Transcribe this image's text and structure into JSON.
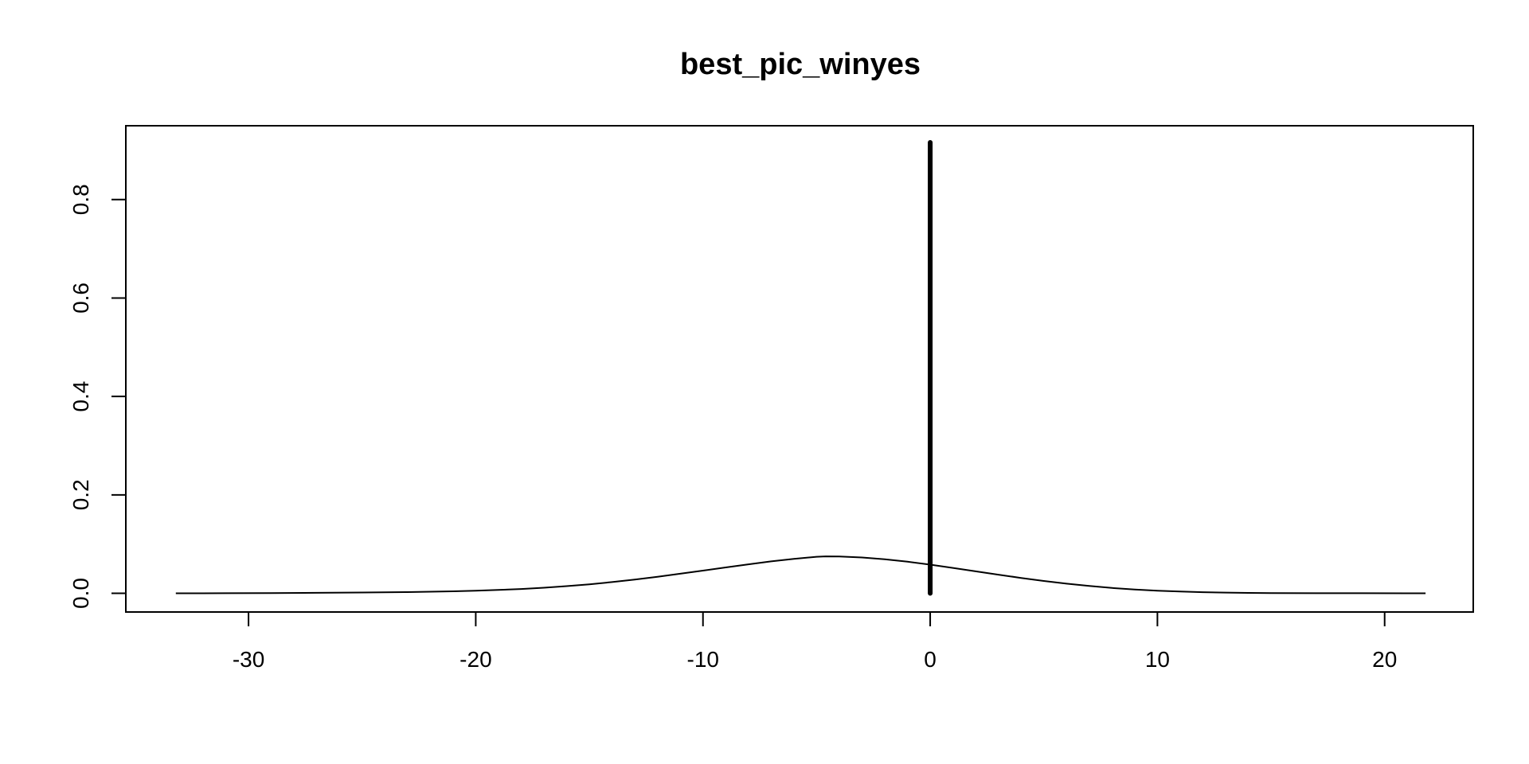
{
  "chart_data": {
    "type": "line",
    "title": "best_pic_winyes",
    "xlabel": "",
    "ylabel": "",
    "xlim": [
      -35.4,
      23.9
    ],
    "ylim": [
      -0.038,
      0.95
    ],
    "x_ticks": [
      -30,
      -20,
      -10,
      0,
      10,
      20
    ],
    "y_ticks": [
      0.0,
      0.2,
      0.4,
      0.6,
      0.8
    ],
    "x_tick_labels": [
      "-30",
      "-20",
      "-10",
      "0",
      "10",
      "20"
    ],
    "y_tick_labels": [
      "0.0",
      "0.2",
      "0.4",
      "0.6",
      "0.8"
    ],
    "grid": false,
    "legend": "none",
    "series": [
      {
        "type": "density",
        "color": "#000000",
        "x": [
          -33.2,
          -31,
          -29,
          -27,
          -25,
          -23,
          -21,
          -20,
          -19,
          -18,
          -17,
          -16,
          -15,
          -14,
          -13,
          -12,
          -11,
          -10,
          -9,
          -8,
          -7,
          -6,
          -5,
          -4.6,
          -4,
          -3,
          -2,
          -1,
          0,
          1,
          2,
          3,
          4,
          5,
          6,
          7,
          8,
          9,
          10,
          11,
          12,
          13,
          14,
          15,
          17,
          19,
          21,
          21.8
        ],
        "y": [
          0.0,
          0.0002,
          0.0005,
          0.001,
          0.0016,
          0.0025,
          0.004,
          0.0052,
          0.0068,
          0.0088,
          0.0113,
          0.0145,
          0.0183,
          0.0228,
          0.0279,
          0.0336,
          0.0397,
          0.0461,
          0.0526,
          0.0589,
          0.0648,
          0.07,
          0.0742,
          0.075,
          0.0747,
          0.0728,
          0.0692,
          0.0642,
          0.0582,
          0.0516,
          0.0447,
          0.0378,
          0.0312,
          0.025,
          0.0195,
          0.0148,
          0.0109,
          0.0078,
          0.0054,
          0.0036,
          0.0023,
          0.0014,
          0.0008,
          0.0005,
          0.0002,
          0.0001,
          0.0,
          0.0
        ]
      },
      {
        "type": "vertical-segment",
        "color": "#000000",
        "x": [
          0,
          0
        ],
        "y": [
          0.0,
          0.916
        ]
      }
    ]
  }
}
